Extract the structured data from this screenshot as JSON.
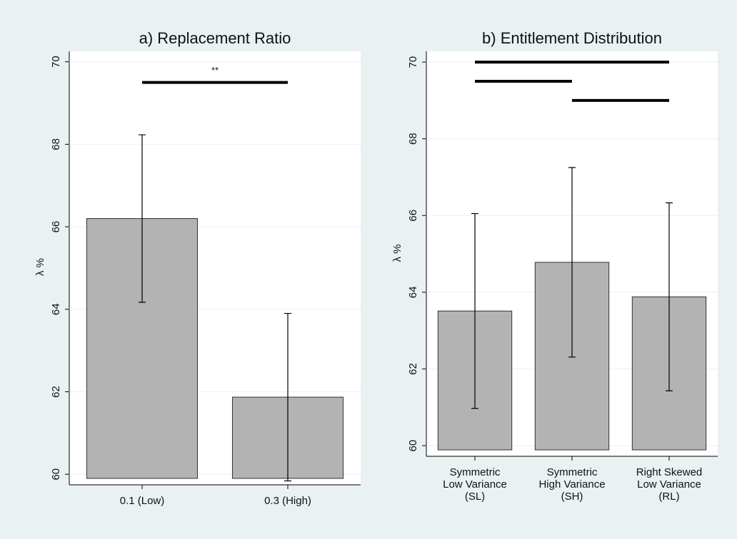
{
  "chart_data": [
    {
      "type": "bar",
      "title": "a) Replacement Ratio",
      "y_label": "λ %",
      "categories": [
        [
          "0.1 (Low)"
        ],
        [
          "0.3 (High)"
        ]
      ],
      "values": [
        66.2,
        61.87
      ],
      "errors": [
        2.03,
        2.03
      ],
      "color": "#b3b3b3",
      "ylim": [
        59.9,
        70.15
      ],
      "yticks": [
        60,
        62,
        64,
        66,
        68,
        70
      ],
      "grid": true,
      "brackets": [
        {
          "from": 0,
          "to": 1,
          "y": 69.5,
          "label": "**"
        }
      ]
    },
    {
      "type": "bar",
      "title": "b) Entitlement Distribution",
      "y_label": "λ %",
      "categories": [
        [
          "Symmetric",
          "Low Variance",
          "(SL)"
        ],
        [
          "Symmetric",
          "High Variance",
          "(SH)"
        ],
        [
          "Right Skewed",
          "Low Variance",
          "(RL)"
        ]
      ],
      "values": [
        63.51,
        64.78,
        63.88
      ],
      "errors": [
        2.54,
        2.47,
        2.45
      ],
      "color": "#b3b3b3",
      "ylim": [
        59.89,
        70.15
      ],
      "yticks": [
        60,
        62,
        64,
        66,
        68,
        70
      ],
      "grid": true,
      "brackets": [
        {
          "from": 0,
          "to": 2,
          "y": 70
        },
        {
          "from": 0,
          "to": 1,
          "y": 69.5
        },
        {
          "from": 1,
          "to": 2,
          "y": 69
        }
      ]
    }
  ]
}
